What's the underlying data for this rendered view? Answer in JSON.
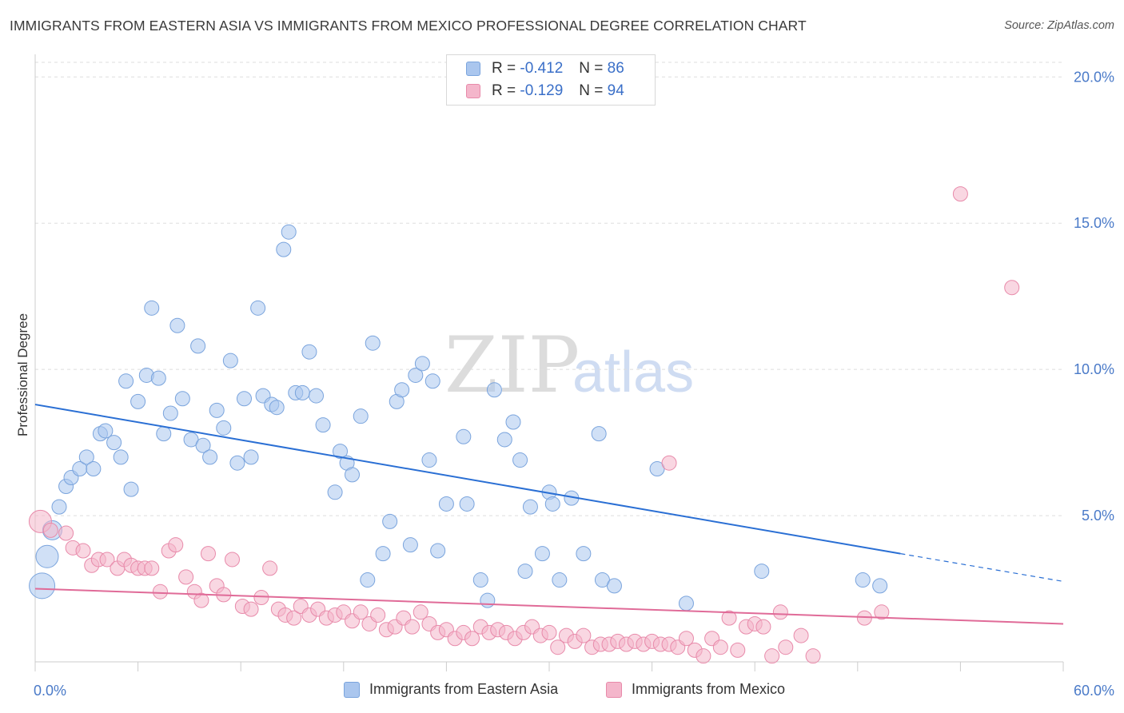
{
  "title": "IMMIGRANTS FROM EASTERN ASIA VS IMMIGRANTS FROM MEXICO PROFESSIONAL DEGREE CORRELATION CHART",
  "source": "Source: ZipAtlas.com",
  "watermark": {
    "part1": "ZIP",
    "part2": "atlas"
  },
  "legend": {
    "series1": {
      "r_label": "R =",
      "r_value": "-0.412",
      "n_label": "N =",
      "n_value": "86"
    },
    "series2": {
      "r_label": "R =",
      "r_value": "-0.129",
      "n_label": "N =",
      "n_value": "94"
    }
  },
  "colors": {
    "blue_fill": "#aac6ee",
    "blue_stroke": "#7aa4dd",
    "blue_line": "#2a6fd4",
    "pink_fill": "#f4b6cb",
    "pink_stroke": "#e88aaa",
    "pink_line": "#e06b98",
    "grid": "#dddddd",
    "axis_text": "#4a7ac8"
  },
  "chart_data": {
    "type": "scatter",
    "title": "IMMIGRANTS FROM EASTERN ASIA VS IMMIGRANTS FROM MEXICO PROFESSIONAL DEGREE CORRELATION CHART",
    "xlabel": "",
    "ylabel": "Professional Degree",
    "xlim": [
      0,
      60
    ],
    "ylim": [
      0,
      20.5
    ],
    "x_tick_labels": [
      "0.0%",
      "60.0%"
    ],
    "y_ticks": [
      5,
      10,
      15,
      20
    ],
    "y_tick_labels": [
      "5.0%",
      "10.0%",
      "15.0%",
      "20.0%"
    ],
    "grid": true,
    "legend_position": "top-center",
    "series": [
      {
        "name": "Immigrants from Eastern Asia",
        "color": "#aac6ee",
        "trend": {
          "x0": 0,
          "y0": 8.8,
          "x1": 50.5,
          "y1": 3.7,
          "dash_to_x": 60,
          "dash_to_y": 2.75
        },
        "points": [
          [
            0.4,
            2.6
          ],
          [
            0.7,
            3.6
          ],
          [
            1.0,
            4.5
          ],
          [
            1.4,
            5.3
          ],
          [
            1.8,
            6.0
          ],
          [
            2.1,
            6.3
          ],
          [
            2.6,
            6.6
          ],
          [
            3.0,
            7.0
          ],
          [
            3.4,
            6.6
          ],
          [
            3.8,
            7.8
          ],
          [
            4.1,
            7.9
          ],
          [
            4.6,
            7.5
          ],
          [
            5.0,
            7.0
          ],
          [
            5.3,
            9.6
          ],
          [
            5.6,
            5.9
          ],
          [
            6.0,
            8.9
          ],
          [
            6.5,
            9.8
          ],
          [
            6.8,
            12.1
          ],
          [
            7.2,
            9.7
          ],
          [
            7.5,
            7.8
          ],
          [
            7.9,
            8.5
          ],
          [
            8.3,
            11.5
          ],
          [
            8.6,
            9.0
          ],
          [
            9.1,
            7.6
          ],
          [
            9.5,
            10.8
          ],
          [
            9.8,
            7.4
          ],
          [
            10.2,
            7.0
          ],
          [
            10.6,
            8.6
          ],
          [
            11.0,
            8.0
          ],
          [
            11.4,
            10.3
          ],
          [
            11.8,
            6.8
          ],
          [
            12.2,
            9.0
          ],
          [
            12.6,
            7.0
          ],
          [
            13.0,
            12.1
          ],
          [
            13.3,
            9.1
          ],
          [
            13.8,
            8.8
          ],
          [
            14.1,
            8.7
          ],
          [
            14.5,
            14.1
          ],
          [
            14.8,
            14.7
          ],
          [
            15.2,
            9.2
          ],
          [
            15.6,
            9.2
          ],
          [
            16.0,
            10.6
          ],
          [
            16.4,
            9.1
          ],
          [
            16.8,
            8.1
          ],
          [
            17.5,
            5.8
          ],
          [
            17.8,
            7.2
          ],
          [
            18.2,
            6.8
          ],
          [
            18.5,
            6.4
          ],
          [
            19.0,
            8.4
          ],
          [
            19.4,
            2.8
          ],
          [
            19.7,
            10.9
          ],
          [
            20.3,
            3.7
          ],
          [
            20.7,
            4.8
          ],
          [
            21.1,
            8.9
          ],
          [
            21.4,
            9.3
          ],
          [
            21.9,
            4.0
          ],
          [
            22.2,
            9.8
          ],
          [
            22.6,
            10.2
          ],
          [
            23.0,
            6.9
          ],
          [
            23.2,
            9.6
          ],
          [
            23.5,
            3.8
          ],
          [
            24.0,
            5.4
          ],
          [
            25.0,
            7.7
          ],
          [
            25.2,
            5.4
          ],
          [
            26.0,
            2.8
          ],
          [
            26.4,
            2.1
          ],
          [
            26.8,
            9.3
          ],
          [
            27.4,
            7.6
          ],
          [
            27.9,
            8.2
          ],
          [
            28.3,
            6.9
          ],
          [
            28.6,
            3.1
          ],
          [
            28.9,
            5.3
          ],
          [
            29.6,
            3.7
          ],
          [
            30.0,
            5.8
          ],
          [
            30.2,
            5.4
          ],
          [
            30.6,
            2.8
          ],
          [
            31.3,
            5.6
          ],
          [
            32.0,
            3.7
          ],
          [
            32.9,
            7.8
          ],
          [
            33.1,
            2.8
          ],
          [
            33.8,
            2.6
          ],
          [
            36.3,
            6.6
          ],
          [
            38.0,
            2.0
          ],
          [
            42.4,
            3.1
          ],
          [
            48.3,
            2.8
          ],
          [
            49.3,
            2.6
          ]
        ]
      },
      {
        "name": "Immigrants from Mexico",
        "color": "#f4b6cb",
        "trend": {
          "x0": 0,
          "y0": 2.5,
          "x1": 60,
          "y1": 1.3
        },
        "points": [
          [
            0.3,
            4.8
          ],
          [
            0.9,
            4.5
          ],
          [
            1.8,
            4.4
          ],
          [
            2.2,
            3.9
          ],
          [
            2.8,
            3.8
          ],
          [
            3.3,
            3.3
          ],
          [
            3.7,
            3.5
          ],
          [
            4.2,
            3.5
          ],
          [
            4.8,
            3.2
          ],
          [
            5.2,
            3.5
          ],
          [
            5.6,
            3.3
          ],
          [
            6.0,
            3.2
          ],
          [
            6.4,
            3.2
          ],
          [
            6.8,
            3.2
          ],
          [
            7.3,
            2.4
          ],
          [
            7.8,
            3.8
          ],
          [
            8.2,
            4.0
          ],
          [
            8.8,
            2.9
          ],
          [
            9.3,
            2.4
          ],
          [
            9.7,
            2.1
          ],
          [
            10.1,
            3.7
          ],
          [
            10.6,
            2.6
          ],
          [
            11.0,
            2.3
          ],
          [
            11.5,
            3.5
          ],
          [
            12.1,
            1.9
          ],
          [
            12.6,
            1.8
          ],
          [
            13.2,
            2.2
          ],
          [
            13.7,
            3.2
          ],
          [
            14.2,
            1.8
          ],
          [
            14.6,
            1.6
          ],
          [
            15.1,
            1.5
          ],
          [
            15.5,
            1.9
          ],
          [
            16.0,
            1.6
          ],
          [
            16.5,
            1.8
          ],
          [
            17.0,
            1.5
          ],
          [
            17.5,
            1.6
          ],
          [
            18.0,
            1.7
          ],
          [
            18.5,
            1.4
          ],
          [
            19.0,
            1.7
          ],
          [
            19.5,
            1.3
          ],
          [
            20.0,
            1.6
          ],
          [
            20.5,
            1.1
          ],
          [
            21.0,
            1.2
          ],
          [
            21.5,
            1.5
          ],
          [
            22.0,
            1.2
          ],
          [
            22.5,
            1.7
          ],
          [
            23.0,
            1.3
          ],
          [
            23.5,
            1.0
          ],
          [
            24.0,
            1.1
          ],
          [
            24.5,
            0.8
          ],
          [
            25.0,
            1.0
          ],
          [
            25.5,
            0.8
          ],
          [
            26.0,
            1.2
          ],
          [
            26.5,
            1.0
          ],
          [
            27.0,
            1.1
          ],
          [
            27.5,
            1.0
          ],
          [
            28.0,
            0.8
          ],
          [
            28.5,
            1.0
          ],
          [
            29.0,
            1.2
          ],
          [
            29.5,
            0.9
          ],
          [
            30.0,
            1.0
          ],
          [
            30.5,
            0.5
          ],
          [
            31.0,
            0.9
          ],
          [
            31.5,
            0.7
          ],
          [
            32.0,
            0.9
          ],
          [
            32.5,
            0.5
          ],
          [
            33.0,
            0.6
          ],
          [
            33.5,
            0.6
          ],
          [
            34.0,
            0.7
          ],
          [
            34.5,
            0.6
          ],
          [
            35.0,
            0.7
          ],
          [
            35.5,
            0.6
          ],
          [
            36.0,
            0.7
          ],
          [
            36.5,
            0.6
          ],
          [
            37.0,
            0.6
          ],
          [
            37.5,
            0.5
          ],
          [
            38.0,
            0.8
          ],
          [
            38.5,
            0.4
          ],
          [
            39.0,
            0.2
          ],
          [
            39.5,
            0.8
          ],
          [
            40.0,
            0.5
          ],
          [
            40.5,
            1.5
          ],
          [
            41.0,
            0.4
          ],
          [
            41.5,
            1.2
          ],
          [
            42.0,
            1.3
          ],
          [
            42.5,
            1.2
          ],
          [
            43.0,
            0.2
          ],
          [
            43.5,
            1.7
          ],
          [
            43.8,
            0.5
          ],
          [
            44.7,
            0.9
          ],
          [
            45.4,
            0.2
          ],
          [
            48.4,
            1.5
          ],
          [
            49.4,
            1.7
          ],
          [
            37.0,
            6.8
          ],
          [
            54.0,
            16.0
          ],
          [
            57.0,
            12.8
          ]
        ]
      }
    ]
  },
  "bottom_legend": {
    "series1": "Immigrants from Eastern Asia",
    "series2": "Immigrants from Mexico"
  }
}
